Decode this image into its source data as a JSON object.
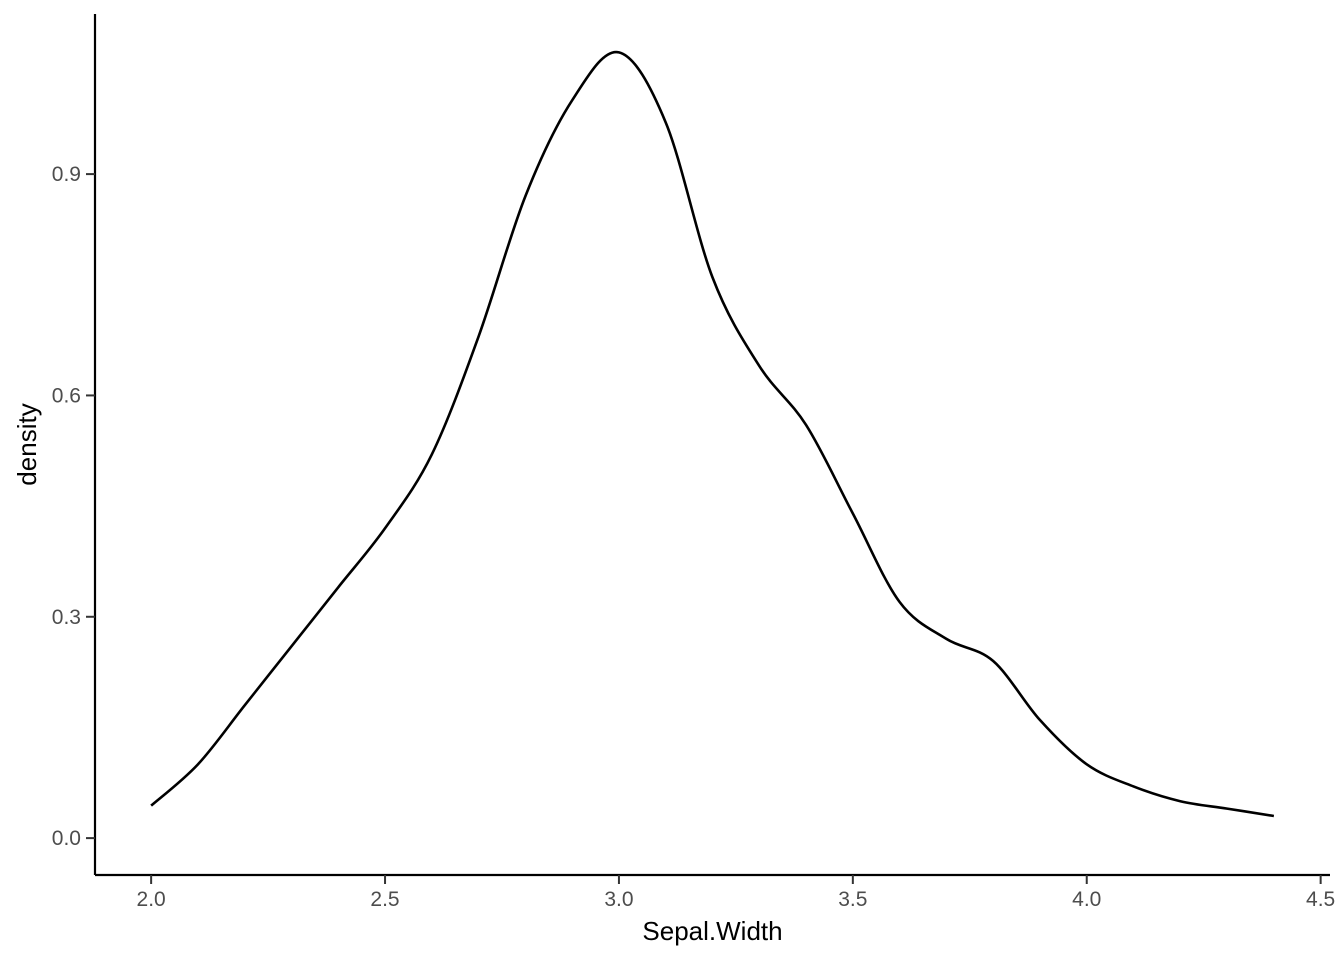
{
  "chart_data": {
    "type": "line",
    "title": "",
    "xlabel": "Sepal.Width",
    "ylabel": "density",
    "xlim": [
      1.88,
      4.52
    ],
    "ylim": [
      -0.05,
      1.117
    ],
    "x_ticks": [
      2.0,
      2.5,
      3.0,
      3.5,
      4.0,
      4.5
    ],
    "x_tick_labels": [
      "2.0",
      "2.5",
      "3.0",
      "3.5",
      "4.0",
      "4.5"
    ],
    "y_ticks": [
      0.0,
      0.3,
      0.6,
      0.9
    ],
    "y_tick_labels": [
      "0.0",
      "0.3",
      "0.6",
      "0.9"
    ],
    "grid": false,
    "line_color": "#000000",
    "series": [
      {
        "x": [
          2.0,
          2.1,
          2.2,
          2.3,
          2.4,
          2.5,
          2.6,
          2.7,
          2.8,
          2.9,
          3.0,
          3.1,
          3.2,
          3.3,
          3.4,
          3.5,
          3.6,
          3.7,
          3.8,
          3.9,
          4.0,
          4.1,
          4.2,
          4.3,
          4.4
        ],
        "y": [
          0.044,
          0.1,
          0.18,
          0.26,
          0.34,
          0.42,
          0.52,
          0.68,
          0.87,
          1.0,
          1.065,
          0.97,
          0.76,
          0.64,
          0.56,
          0.44,
          0.32,
          0.27,
          0.24,
          0.16,
          0.1,
          0.07,
          0.05,
          0.04,
          0.03
        ]
      }
    ]
  }
}
